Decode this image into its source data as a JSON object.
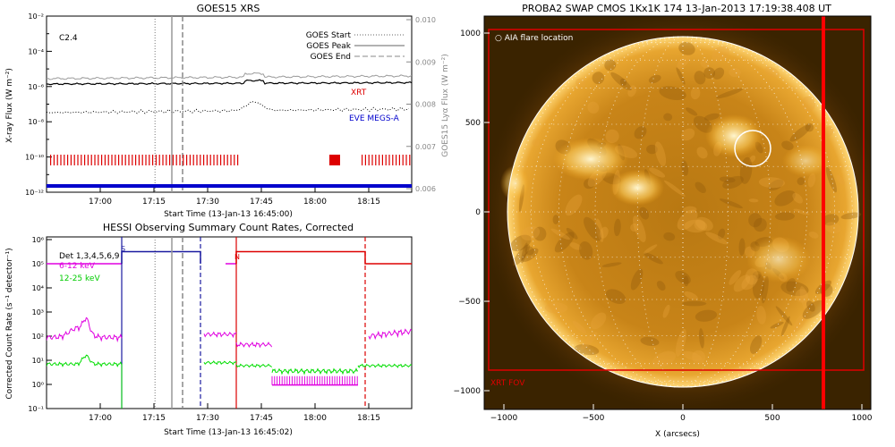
{
  "goes_panel": {
    "title": "GOES15 XRS",
    "flare_class": "C2.4",
    "xlabel": "Start Time (13-Jan-13 16:45:00)",
    "ylabel_left": "X-ray Flux (W m⁻²)",
    "ylabel_right": "GOES15 Lyα Flux (W m⁻²)",
    "legend": {
      "start": "GOES Start",
      "peak": "GOES Peak",
      "end": "GOES End"
    },
    "annotations": {
      "xrt": "XRT",
      "eve": "EVE MEGS-A"
    },
    "left_ticks": [
      "10⁻²",
      "10⁻⁴",
      "10⁻⁶",
      "10⁻⁸",
      "10⁻¹⁰",
      "10⁻¹²"
    ],
    "right_ticks": [
      "0.010",
      "0.009",
      "0.008",
      "0.007",
      "0.006"
    ],
    "x_ticks": [
      "17:00",
      "17:15",
      "17:30",
      "17:45",
      "18:00",
      "18:15"
    ]
  },
  "hessi_panel": {
    "title": "HESSI Observing Summary Count Rates, Corrected",
    "xlabel": "Start Time (13-Jan-13 16:45:02)",
    "ylabel": "Corrected Count Rate (s⁻¹ detector⁻¹)",
    "legend": [
      {
        "label": "Det 1,3,4,5,6,9",
        "color": "#000000"
      },
      {
        "label": "6-12 keV",
        "color": "#e000e0"
      },
      {
        "label": "12-25 keV",
        "color": "#00cc00"
      }
    ],
    "markers": {
      "s": "S",
      "n": "N"
    },
    "y_ticks": [
      "10⁶",
      "10⁵",
      "10⁴",
      "10³",
      "10²",
      "10¹",
      "10⁰",
      "10⁻¹"
    ],
    "x_ticks": [
      "17:00",
      "17:15",
      "17:30",
      "17:45",
      "18:00",
      "18:15"
    ]
  },
  "swap_panel": {
    "title": "PROBA2 SWAP CMOS 1Kx1K 174 13-Jan-2013 17:19:38.408 UT",
    "legend_aia": "○ AIA flare location",
    "legend_xrt": "XRT FOV",
    "xlabel": "X (arcsecs)",
    "x_ticks": [
      "−1000",
      "−500",
      "0",
      "500",
      "1000"
    ],
    "y_ticks": [
      "1000",
      "500",
      "0",
      "−500",
      "−1000"
    ]
  },
  "colors": {
    "xrt": "#dd0000",
    "eve": "#0000cc",
    "hessi_low": "#e000e0",
    "hessi_high": "#00dd00",
    "attenuator": "#1a1aa0",
    "sun_bg": "#3a2300",
    "sun_disk": "#f0a020"
  }
}
